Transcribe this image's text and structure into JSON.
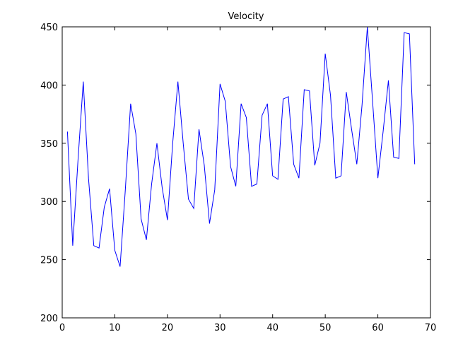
{
  "chart_data": {
    "type": "line",
    "title": "Velocity",
    "xlabel": "",
    "ylabel": "",
    "xlim": [
      0,
      70
    ],
    "ylim": [
      200,
      450
    ],
    "xticks": [
      0,
      10,
      20,
      30,
      40,
      50,
      60,
      70
    ],
    "yticks": [
      200,
      250,
      300,
      350,
      400,
      450
    ],
    "grid": false,
    "line_color": "#0000ff",
    "series": [
      {
        "x": [
          1,
          2,
          3,
          4,
          5,
          6,
          7,
          8,
          9,
          10,
          11,
          12,
          13,
          14,
          15,
          16,
          17,
          18,
          19,
          20,
          21,
          22,
          23,
          24,
          25,
          26,
          27,
          28,
          29,
          30,
          31,
          32,
          33,
          34,
          35,
          36,
          37,
          38,
          39,
          40,
          41,
          42,
          43,
          44,
          45,
          46,
          47,
          48,
          49,
          50,
          51,
          52,
          53,
          54,
          55,
          56,
          57,
          58,
          59,
          60,
          61,
          62,
          63,
          64,
          65,
          66,
          67
        ],
        "values": [
          360,
          262,
          335,
          403,
          320,
          262,
          260,
          295,
          311,
          258,
          244,
          310,
          384,
          358,
          285,
          267,
          315,
          350,
          312,
          284,
          350,
          403,
          350,
          302,
          294,
          362,
          331,
          281,
          310,
          401,
          386,
          330,
          313,
          384,
          372,
          313,
          315,
          374,
          384,
          322,
          319,
          388,
          390,
          332,
          320,
          396,
          395,
          331,
          350,
          427,
          391,
          320,
          322,
          394,
          362,
          332,
          383,
          450,
          386,
          320,
          360,
          404,
          338,
          337,
          445,
          444,
          332
        ]
      }
    ]
  }
}
